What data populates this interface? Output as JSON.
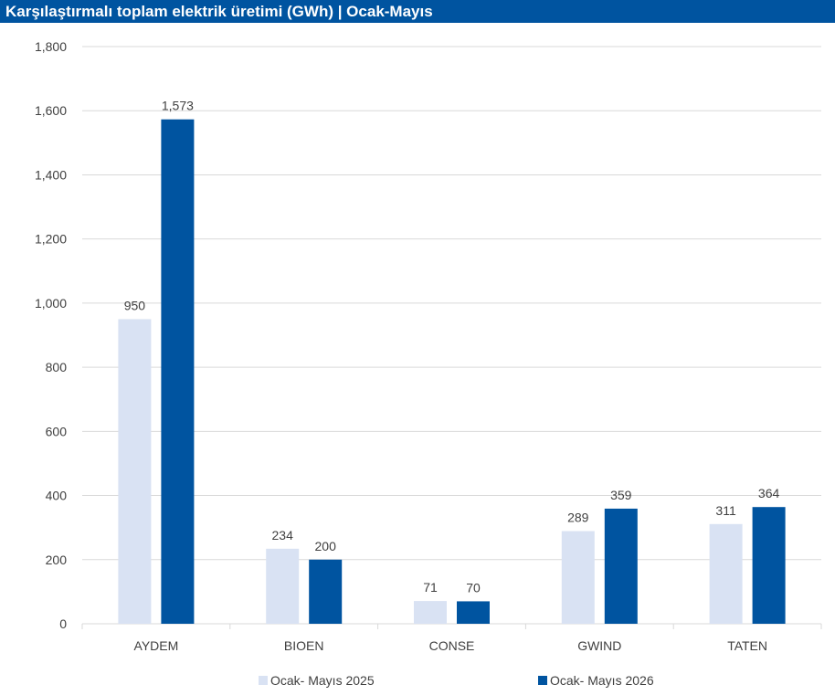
{
  "title": "Karşılaştırmalı toplam elektrik üretimi (GWh) | Ocak-Mayıs",
  "colors": {
    "title_bg": "#0054a0",
    "series_2025": "#d9e2f3",
    "series_2026": "#0054a0",
    "grid": "#d9d9d9",
    "text": "#404040"
  },
  "chart_data": {
    "type": "bar",
    "title": "Karşılaştırmalı toplam elektrik üretimi (GWh) | Ocak-Mayıs",
    "xlabel": "",
    "ylabel": "",
    "categories": [
      "AYDEM",
      "BIOEN",
      "CONSE",
      "GWIND",
      "TATEN"
    ],
    "series": [
      {
        "name": "Ocak- Mayıs 2025",
        "color": "#d9e2f3",
        "values": [
          950,
          234,
          71,
          289,
          311
        ],
        "labels": [
          "950",
          "234",
          "71",
          "289",
          "311"
        ]
      },
      {
        "name": "Ocak- Mayıs 2026",
        "color": "#0054a0",
        "values": [
          1573,
          200,
          70,
          359,
          364
        ],
        "labels": [
          "1,573",
          "200",
          "70",
          "359",
          "364"
        ]
      }
    ],
    "ylim": [
      0,
      1800
    ],
    "yticks": [
      0,
      200,
      400,
      600,
      800,
      1000,
      1200,
      1400,
      1600,
      1800
    ],
    "ytick_labels": [
      "0",
      "200",
      "400",
      "600",
      "800",
      "1,000",
      "1,200",
      "1,400",
      "1,600",
      "1,800"
    ],
    "grid": true,
    "legend_position": "bottom"
  }
}
